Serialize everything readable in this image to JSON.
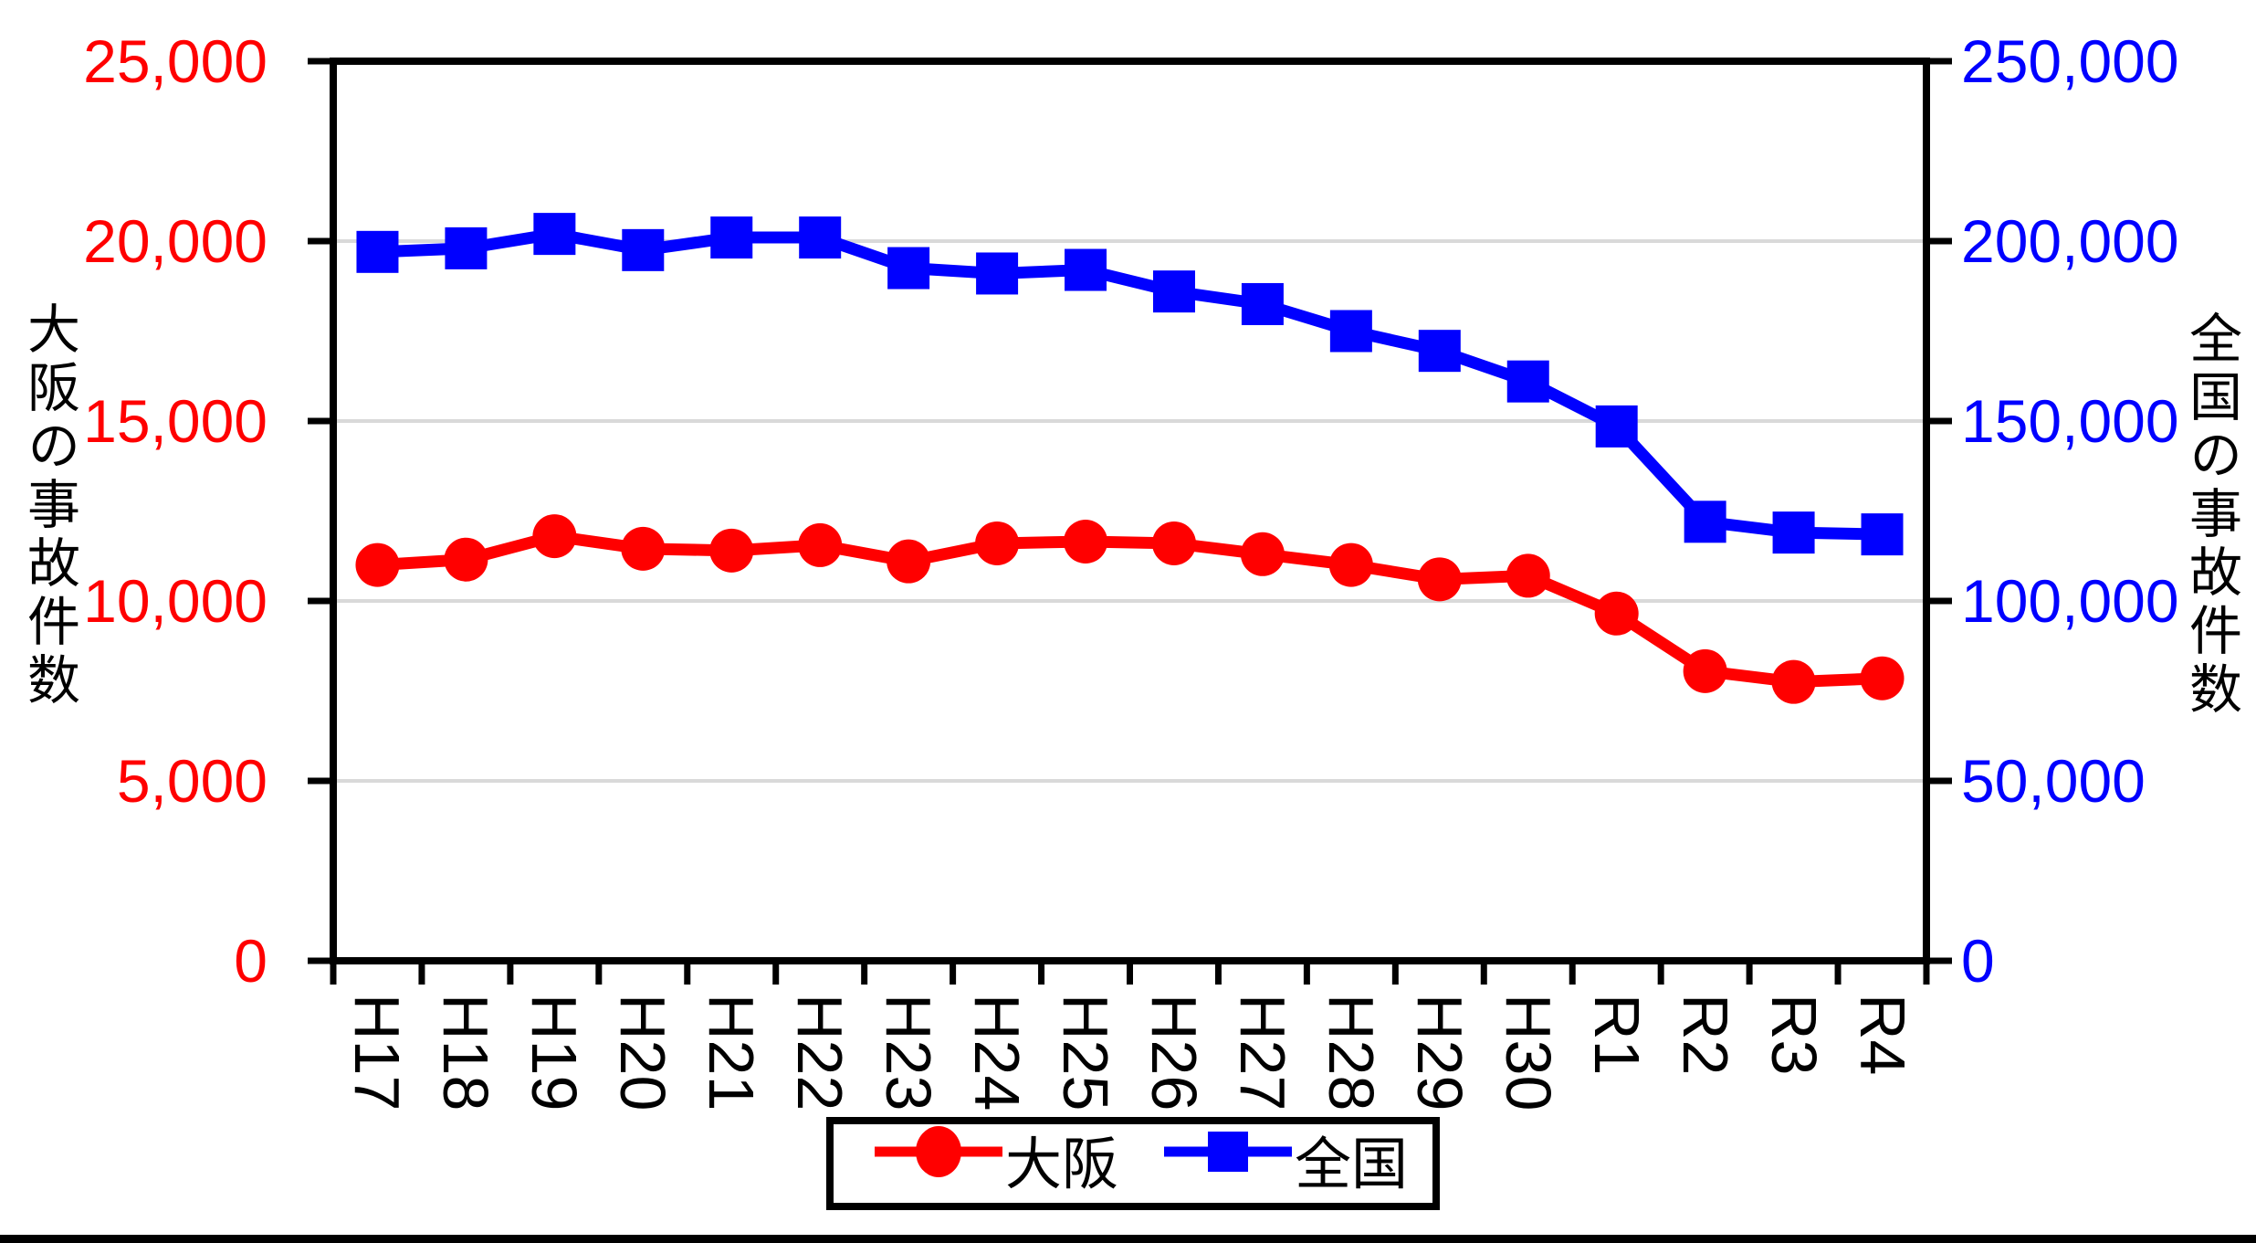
{
  "chart": {
    "left_axis_title": "大阪の事故件数",
    "right_axis_title": "全国の事故件数",
    "colors": {
      "osaka": "#ff0000",
      "zenkoku": "#0000ff",
      "gridline": "#d9d9d9",
      "axis": "#000000",
      "background": "#ffffff"
    }
  },
  "legend": {
    "osaka_label": "大阪",
    "zenkoku_label": "全国"
  },
  "chart_data": {
    "type": "line",
    "categories": [
      "H17",
      "H18",
      "H19",
      "H20",
      "H21",
      "H22",
      "H23",
      "H24",
      "H25",
      "H26",
      "H27",
      "H28",
      "H29",
      "H30",
      "R1",
      "R2",
      "R3",
      "R4"
    ],
    "series": [
      {
        "name": "大阪",
        "axis": "left",
        "marker": "circle",
        "color": "#ff0000",
        "values": [
          11000,
          11150,
          11800,
          11450,
          11400,
          11550,
          11100,
          11600,
          11650,
          11600,
          11300,
          11000,
          10600,
          10700,
          9650,
          8050,
          7750,
          7850
        ]
      },
      {
        "name": "全国",
        "axis": "right",
        "marker": "square",
        "color": "#0000ff",
        "values": [
          197000,
          198000,
          202000,
          197500,
          201000,
          201000,
          192500,
          191000,
          192000,
          186000,
          182500,
          175000,
          169500,
          161000,
          148500,
          122000,
          119000,
          118500
        ]
      }
    ],
    "left_axis": {
      "title": "大阪の事故件数",
      "min": 0,
      "max": 25000,
      "tick_interval": 5000,
      "tick_labels": [
        "0",
        "5,000",
        "10,000",
        "15,000",
        "20,000",
        "25,000"
      ],
      "color": "#ff0000"
    },
    "right_axis": {
      "title": "全国の事故件数",
      "min": 0,
      "max": 250000,
      "tick_interval": 50000,
      "tick_labels": [
        "0",
        "50,000",
        "100,000",
        "150,000",
        "200,000",
        "250,000"
      ],
      "color": "#0000ff"
    },
    "grid": true,
    "gridline_values_left": [
      5000,
      10000,
      15000,
      20000
    ],
    "legend_position": "bottom",
    "title": ""
  }
}
